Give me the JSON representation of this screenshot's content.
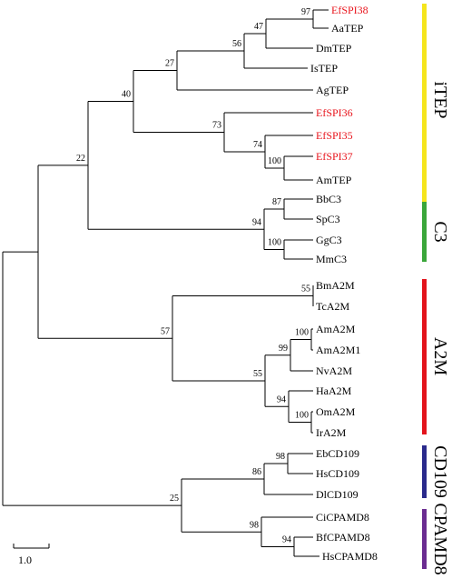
{
  "leaves": [
    {
      "label": "EfSPI38",
      "color": "#e8141c"
    },
    {
      "label": "AaTEP",
      "color": "#000000"
    },
    {
      "label": "DmTEP",
      "color": "#000000"
    },
    {
      "label": "IsTEP",
      "color": "#000000"
    },
    {
      "label": "AgTEP",
      "color": "#000000"
    },
    {
      "label": "EfSPI36",
      "color": "#e8141c"
    },
    {
      "label": "EfSPI35",
      "color": "#e8141c"
    },
    {
      "label": "EfSPI37",
      "color": "#e8141c"
    },
    {
      "label": "AmTEP",
      "color": "#000000"
    },
    {
      "label": "BbC3",
      "color": "#000000"
    },
    {
      "label": "SpC3",
      "color": "#000000"
    },
    {
      "label": "GgC3",
      "color": "#000000"
    },
    {
      "label": "MmC3",
      "color": "#000000"
    },
    {
      "label": "BmA2M",
      "color": "#000000"
    },
    {
      "label": "TcA2M",
      "color": "#000000"
    },
    {
      "label": "AmA2M",
      "color": "#000000"
    },
    {
      "label": "AmA2M1",
      "color": "#000000"
    },
    {
      "label": "NvA2M",
      "color": "#000000"
    },
    {
      "label": "HaA2M",
      "color": "#000000"
    },
    {
      "label": "OmA2M",
      "color": "#000000"
    },
    {
      "label": "IrA2M",
      "color": "#000000"
    },
    {
      "label": "EbCD109",
      "color": "#000000"
    },
    {
      "label": "HsCD109",
      "color": "#000000"
    },
    {
      "label": "DlCD109",
      "color": "#000000"
    },
    {
      "label": "CiCPAMD8",
      "color": "#000000"
    },
    {
      "label": "BfCPAMD8",
      "color": "#000000"
    },
    {
      "label": "HsCPAMD8",
      "color": "#000000"
    }
  ],
  "nodes": [
    {
      "id": "n1",
      "support": "97"
    },
    {
      "id": "n2",
      "support": "47"
    },
    {
      "id": "n3",
      "support": "56"
    },
    {
      "id": "n4",
      "support": "27"
    },
    {
      "id": "n5",
      "support": "100"
    },
    {
      "id": "n6",
      "support": "74"
    },
    {
      "id": "n7",
      "support": "73"
    },
    {
      "id": "n8",
      "support": "40"
    },
    {
      "id": "n9",
      "support": "87"
    },
    {
      "id": "n10",
      "support": "100"
    },
    {
      "id": "n11",
      "support": "94"
    },
    {
      "id": "n12",
      "support": "22"
    },
    {
      "id": "n13",
      "support": "55"
    },
    {
      "id": "n14",
      "support": "100"
    },
    {
      "id": "n15",
      "support": "99"
    },
    {
      "id": "n16",
      "support": "100"
    },
    {
      "id": "n17",
      "support": "94"
    },
    {
      "id": "n18",
      "support": "55"
    },
    {
      "id": "n19",
      "support": "57"
    },
    {
      "id": "n20",
      "support": "98"
    },
    {
      "id": "n21",
      "support": "86"
    },
    {
      "id": "n22",
      "support": "94"
    },
    {
      "id": "n23",
      "support": "98"
    },
    {
      "id": "n24",
      "support": "25"
    }
  ],
  "clades": [
    {
      "label": "iTEP",
      "color": "#f5e51c"
    },
    {
      "label": "C3",
      "color": "#3aa63a"
    },
    {
      "label": "A2M",
      "color": "#e3141c"
    },
    {
      "label": "CD109",
      "color": "#2a2a8c"
    },
    {
      "label": "CPAMD8",
      "color": "#6b2c91"
    }
  ],
  "scale_bar": {
    "label": "1.0"
  }
}
